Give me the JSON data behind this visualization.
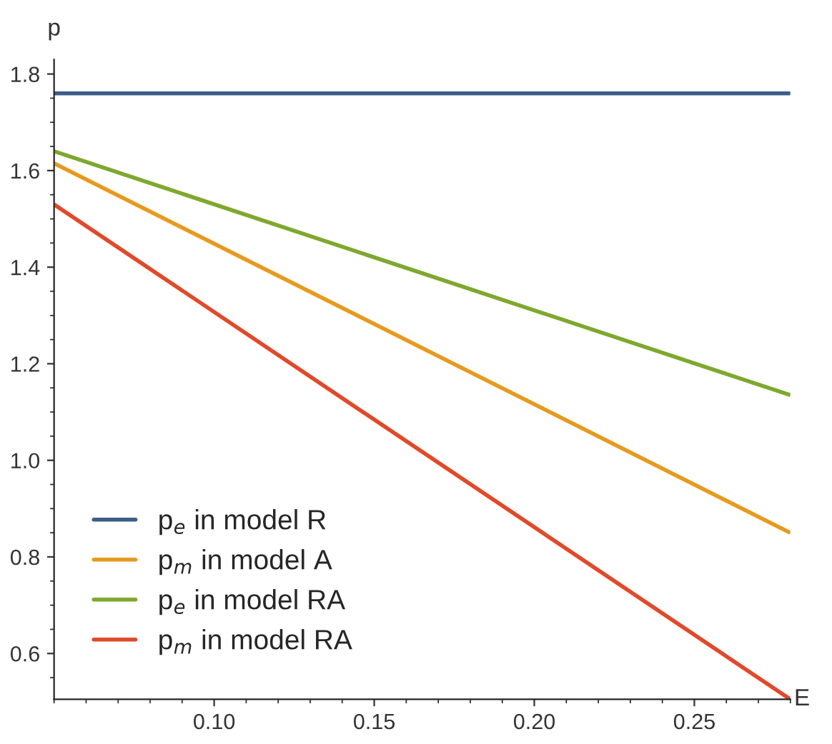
{
  "chart_data": {
    "type": "line",
    "xlabel": "E",
    "ylabel": "p",
    "xlim": [
      0.05,
      0.28
    ],
    "ylim": [
      0.505,
      1.83
    ],
    "xticks": [
      {
        "value": 0.1,
        "label": "0.10"
      },
      0.15,
      {
        "value": 0.2,
        "label": "0.20"
      },
      0.25
    ],
    "yticks": [
      0.6,
      0.8,
      {
        "value": 1.0,
        "label": "1.0"
      },
      1.2,
      1.4,
      1.6,
      1.8
    ],
    "x": [
      0.05,
      0.28
    ],
    "grid": false,
    "legend": "bottom left",
    "marker": "none",
    "line_style": "solid",
    "series": [
      {
        "name": "p$_{e}$ in model R",
        "color": "#3d5d8a",
        "values": [
          1.76,
          1.76
        ]
      },
      {
        "name": "p$_{m}$ in model A",
        "color": "#e69a1f",
        "values": [
          1.615,
          0.85
        ]
      },
      {
        "name": "p$_{e}$ in model RA",
        "color": "#7ea82e",
        "values": [
          1.64,
          1.135
        ]
      },
      {
        "name": "p$_{m}$ in model RA",
        "color": "#e04a2a",
        "values": [
          1.53,
          0.505
        ]
      }
    ]
  }
}
